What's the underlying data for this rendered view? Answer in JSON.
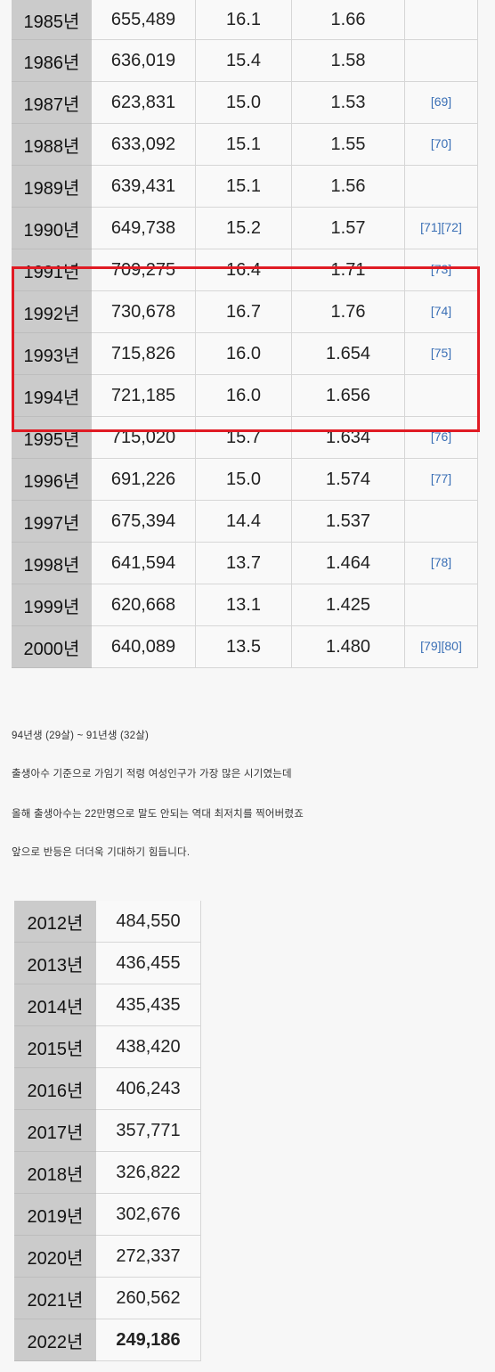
{
  "table1": {
    "rows": [
      {
        "year": "1985년",
        "births": "655,489",
        "rate": "16.1",
        "tfr": "1.66",
        "ref": ""
      },
      {
        "year": "1986년",
        "births": "636,019",
        "rate": "15.4",
        "tfr": "1.58",
        "ref": ""
      },
      {
        "year": "1987년",
        "births": "623,831",
        "rate": "15.0",
        "tfr": "1.53",
        "ref": "[69]"
      },
      {
        "year": "1988년",
        "births": "633,092",
        "rate": "15.1",
        "tfr": "1.55",
        "ref": "[70]"
      },
      {
        "year": "1989년",
        "births": "639,431",
        "rate": "15.1",
        "tfr": "1.56",
        "ref": ""
      },
      {
        "year": "1990년",
        "births": "649,738",
        "rate": "15.2",
        "tfr": "1.57",
        "ref": "[71][72]"
      },
      {
        "year": "1991년",
        "births": "709,275",
        "rate": "16.4",
        "tfr": "1.71",
        "ref": "[73]"
      },
      {
        "year": "1992년",
        "births": "730,678",
        "rate": "16.7",
        "tfr": "1.76",
        "ref": "[74]"
      },
      {
        "year": "1993년",
        "births": "715,826",
        "rate": "16.0",
        "tfr": "1.654",
        "ref": "[75]"
      },
      {
        "year": "1994년",
        "births": "721,185",
        "rate": "16.0",
        "tfr": "1.656",
        "ref": ""
      },
      {
        "year": "1995년",
        "births": "715,020",
        "rate": "15.7",
        "tfr": "1.634",
        "ref": "[76]"
      },
      {
        "year": "1996년",
        "births": "691,226",
        "rate": "15.0",
        "tfr": "1.574",
        "ref": "[77]"
      },
      {
        "year": "1997년",
        "births": "675,394",
        "rate": "14.4",
        "tfr": "1.537",
        "ref": ""
      },
      {
        "year": "1998년",
        "births": "641,594",
        "rate": "13.7",
        "tfr": "1.464",
        "ref": "[78]"
      },
      {
        "year": "1999년",
        "births": "620,668",
        "rate": "13.1",
        "tfr": "1.425",
        "ref": ""
      },
      {
        "year": "2000년",
        "births": "640,089",
        "rate": "13.5",
        "tfr": "1.480",
        "ref": "[79][80]"
      }
    ]
  },
  "text": {
    "line1": "94년생 (29살) ~ 91년생 (32살)",
    "line2": "출생아수 기준으로 가임기 적령 여성인구가 가장 많은 시기였는데",
    "line3": "올해 출생아수는 22만명으로 말도 안되는 역대 최저치를 찍어버렸죠",
    "line4": "앞으로 반등은 더더욱 기대하기 힘듭니다."
  },
  "table2": {
    "rows": [
      {
        "year": "2012년",
        "births": "484,550"
      },
      {
        "year": "2013년",
        "births": "436,455"
      },
      {
        "year": "2014년",
        "births": "435,435"
      },
      {
        "year": "2015년",
        "births": "438,420"
      },
      {
        "year": "2016년",
        "births": "406,243"
      },
      {
        "year": "2017년",
        "births": "357,771"
      },
      {
        "year": "2018년",
        "births": "326,822"
      },
      {
        "year": "2019년",
        "births": "302,676"
      },
      {
        "year": "2020년",
        "births": "272,337"
      },
      {
        "year": "2021년",
        "births": "260,562"
      },
      {
        "year": "2022년",
        "births": "249,186"
      }
    ]
  },
  "colors": {
    "highlight_border": "#e01b24",
    "link": "#3a6fb5",
    "year_cell_bg": "#cbcbcb"
  }
}
